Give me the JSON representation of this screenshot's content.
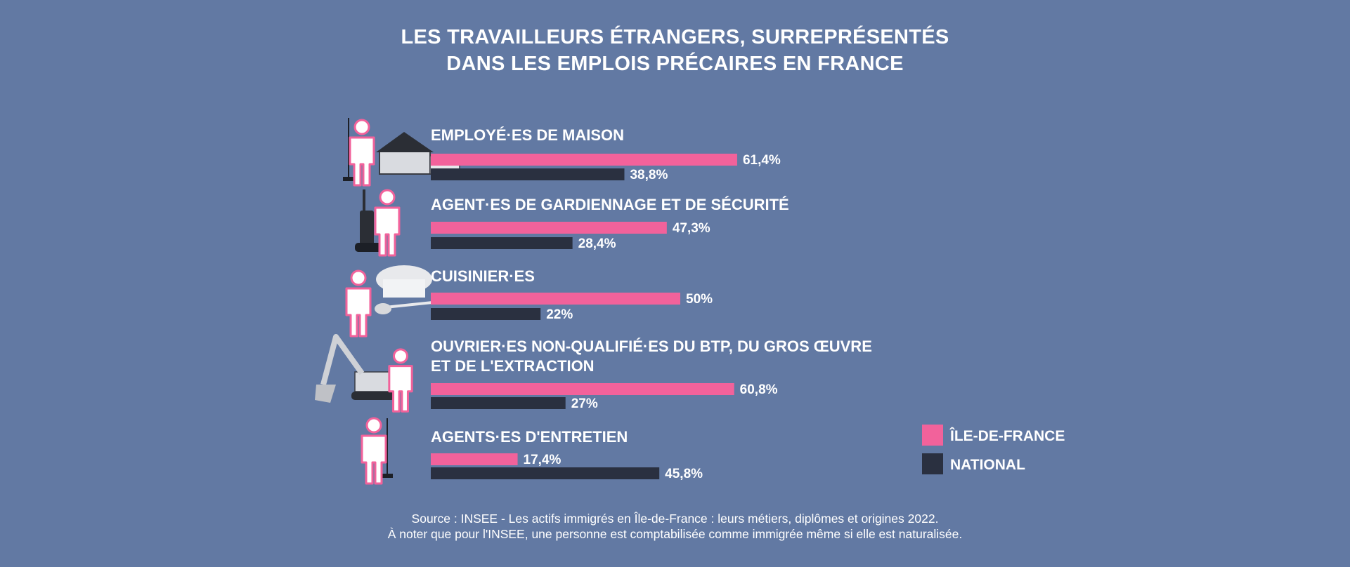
{
  "title_lines": [
    "LES TRAVAILLEURS ÉTRANGERS, SURREPRÉSENTÉS",
    "DANS LES EMPLOIS PRÉCAIRES EN FRANCE"
  ],
  "source_lines": [
    "Source : INSEE - Les actifs immigrés en Île-de-France : leurs métiers, diplômes et origines 2022.",
    "À noter que pour l'INSEE, une personne est comptabilisée comme immigrée même si elle est naturalisée."
  ],
  "colors": {
    "background": "#6279a3",
    "ile_de_france": "#f2629b",
    "national": "#2a3040",
    "text": "#ffffff"
  },
  "icons": [
    "house-worker-icon",
    "security-guard-icon",
    "cook-icon",
    "excavator-worker-icon",
    "cleaner-icon"
  ],
  "chart_data": {
    "type": "bar",
    "orientation": "horizontal",
    "categories": [
      "EMPLOYÉ·ES DE MAISON",
      "AGENT·ES DE GARDIENNAGE ET DE SÉCURITÉ",
      "CUISINIER·ES",
      "OUVRIER·ES NON-QUALIFIÉ·ES DU BTP, DU GROS ŒUVRE ET DE L'EXTRACTION",
      "AGENTS·ES D'ENTRETIEN"
    ],
    "category_lines": [
      [
        "EMPLOYÉ·ES DE MAISON"
      ],
      [
        "AGENT·ES DE GARDIENNAGE ET DE SÉCURITÉ"
      ],
      [
        "CUISINIER·ES"
      ],
      [
        "OUVRIER·ES NON-QUALIFIÉ·ES DU BTP, DU GROS ŒUVRE",
        "ET DE L'EXTRACTION"
      ],
      [
        "AGENTS·ES D'ENTRETIEN"
      ]
    ],
    "series": [
      {
        "name": "ÎLE-DE-FRANCE",
        "values": [
          61.4,
          47.3,
          50,
          60.8,
          17.4
        ],
        "labels": [
          "61,4%",
          "47,3%",
          "50%",
          "60,8%",
          "17,4%"
        ]
      },
      {
        "name": "NATIONAL",
        "values": [
          38.8,
          28.4,
          22,
          27,
          45.8
        ],
        "labels": [
          "38,8%",
          "28,4%",
          "22%",
          "27%",
          "45,8%"
        ]
      }
    ],
    "unit": "%",
    "legend_position": "right",
    "grid": false
  }
}
